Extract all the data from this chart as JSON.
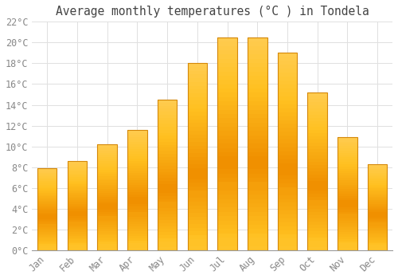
{
  "title": "Average monthly temperatures (°C ) in Tondela",
  "months": [
    "Jan",
    "Feb",
    "Mar",
    "Apr",
    "May",
    "Jun",
    "Jul",
    "Aug",
    "Sep",
    "Oct",
    "Nov",
    "Dec"
  ],
  "values": [
    7.9,
    8.6,
    10.2,
    11.6,
    14.5,
    18.0,
    20.5,
    20.5,
    19.0,
    15.2,
    10.9,
    8.3
  ],
  "bar_color_top": "#FFC125",
  "bar_color_bottom": "#F5A623",
  "bar_edge_color": "#D4880A",
  "background_color": "#FFFFFF",
  "grid_color": "#E0E0E0",
  "text_color": "#888888",
  "title_color": "#444444",
  "ylim": [
    0,
    22
  ],
  "yticks": [
    0,
    2,
    4,
    6,
    8,
    10,
    12,
    14,
    16,
    18,
    20,
    22
  ],
  "title_fontsize": 10.5,
  "tick_fontsize": 8.5,
  "bar_width": 0.65
}
